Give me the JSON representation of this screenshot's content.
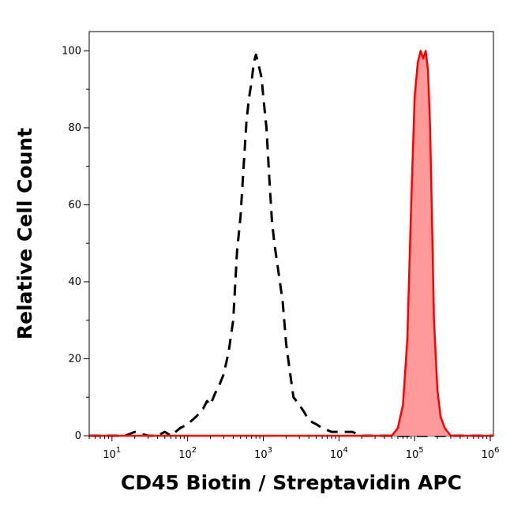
{
  "chart_data": {
    "type": "area",
    "xlabel": "CD45 Biotin / Streptavidin APC",
    "ylabel": "Relative Cell Count",
    "xscale": "log",
    "xlim": [
      5,
      1100000
    ],
    "ylim": [
      0,
      105
    ],
    "grid": false,
    "x_ticks": [
      {
        "base": "10",
        "exp": "1",
        "value": 10
      },
      {
        "base": "10",
        "exp": "2",
        "value": 100
      },
      {
        "base": "10",
        "exp": "3",
        "value": 1000
      },
      {
        "base": "10",
        "exp": "4",
        "value": 10000
      },
      {
        "base": "10",
        "exp": "5",
        "value": 100000
      },
      {
        "base": "10",
        "exp": "6",
        "value": 1000000
      }
    ],
    "y_ticks": [
      0,
      20,
      40,
      60,
      80,
      100
    ],
    "series": [
      {
        "style": "dashed",
        "color": "#000000",
        "x": [
          5,
          15,
          20,
          30,
          40,
          50,
          60,
          80,
          100,
          130,
          160,
          180,
          200,
          230,
          260,
          300,
          350,
          400,
          450,
          500,
          550,
          600,
          650,
          700,
          750,
          800,
          850,
          900,
          950,
          1000,
          1100,
          1200,
          1300,
          1400,
          1600,
          1800,
          2000,
          2200,
          2500,
          3000,
          3500,
          4000,
          5000,
          6000,
          8000,
          10000,
          15000,
          20000,
          30000,
          50000,
          1100000
        ],
        "y": [
          0,
          0,
          1,
          0,
          0,
          1,
          0,
          2,
          3,
          5,
          7,
          9,
          8,
          11,
          13,
          16,
          22,
          30,
          48,
          57,
          70,
          82,
          88,
          92,
          97,
          99,
          97,
          95,
          93,
          88,
          80,
          67,
          56,
          50,
          42,
          35,
          24,
          18,
          10,
          8,
          6,
          4,
          3,
          2,
          1,
          1,
          1,
          0,
          0,
          0,
          0
        ]
      },
      {
        "style": "filled",
        "color": "#ff0000",
        "fill": "#ff9a9a",
        "x": [
          5,
          40000,
          50000,
          60000,
          70000,
          80000,
          90000,
          100000,
          110000,
          120000,
          130000,
          140000,
          150000,
          160000,
          170000,
          180000,
          200000,
          220000,
          250000,
          300000,
          1100000
        ],
        "y": [
          0,
          0,
          0,
          2,
          8,
          25,
          60,
          88,
          97,
          100,
          98,
          100,
          95,
          80,
          55,
          30,
          12,
          5,
          2,
          0,
          0
        ]
      }
    ]
  }
}
